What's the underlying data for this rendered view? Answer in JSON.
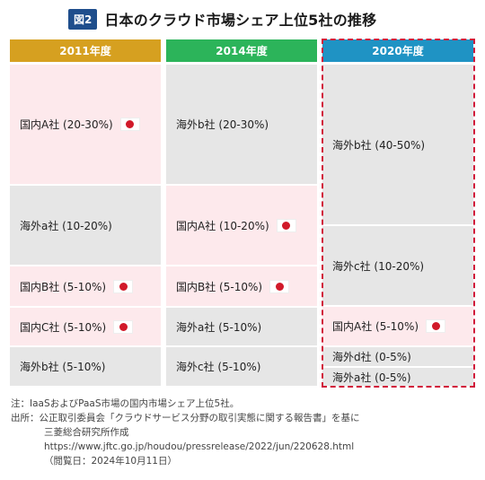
{
  "title": {
    "badge": "図2",
    "text": "日本のクラウド市場シェア上位5社の推移"
  },
  "columns": [
    {
      "year": "2011年度",
      "header_color": "#d6a020",
      "cells": [
        {
          "label": "国内A社 (20-30%)",
          "domestic": true
        },
        {
          "label": "海外a社 (10-20%)",
          "domestic": false
        },
        {
          "label": "国内B社 (5-10%)",
          "domestic": true
        },
        {
          "label": "国内C社 (5-10%)",
          "domestic": true
        },
        {
          "label": "海外b社 (5-10%)",
          "domestic": false
        }
      ]
    },
    {
      "year": "2014年度",
      "header_color": "#2cb45a",
      "cells": [
        {
          "label": "海外b社 (20-30%)",
          "domestic": false
        },
        {
          "label": "国内A社 (10-20%)",
          "domestic": true
        },
        {
          "label": "国内B社 (5-10%)",
          "domestic": true
        },
        {
          "label": "海外a社 (5-10%)",
          "domestic": false
        },
        {
          "label": "海外c社 (5-10%)",
          "domestic": false
        }
      ]
    },
    {
      "year": "2020年度",
      "header_color": "#1f93c4",
      "cells": [
        {
          "label": "海外b社 (40-50%)",
          "domestic": false
        },
        {
          "label": "海外c社 (10-20%)",
          "domestic": false
        },
        {
          "label": "国内A社 (5-10%)",
          "domestic": true
        },
        {
          "label": "海外d社 (0-5%)",
          "domestic": false
        },
        {
          "label": "海外a社 (0-5%)",
          "domestic": false
        }
      ]
    }
  ],
  "notes": {
    "note": "注：IaaSおよびPaaS市場の国内市場シェア上位5社。",
    "source_line1": "出所：公正取引委員会「クラウドサービス分野の取引実態に関する報告書」を基に",
    "source_line2": "三菱総合研究所作成",
    "source_url": "https://www.jftc.go.jp/houdou/pressrelease/2022/jun/220628.html",
    "source_date": "（閲覧日：2024年10月11日）"
  },
  "colors": {
    "domestic": "#fde9ec",
    "overseas": "#e6e6e6",
    "flag_red": "#d11a2a",
    "highlight": "#d11a3a"
  }
}
